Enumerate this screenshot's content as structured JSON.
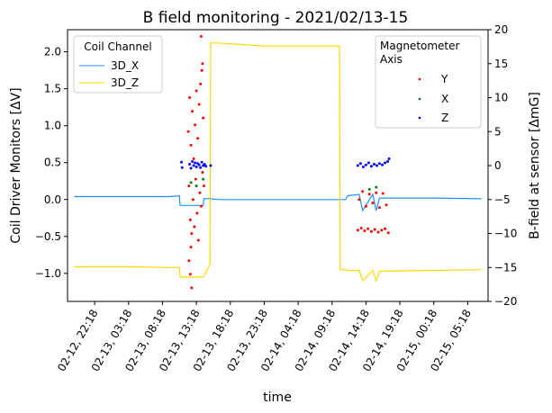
{
  "chart_data": {
    "type": "line",
    "title": "B field monitoring - 2021/02/13-15",
    "xlabel": "time",
    "ylabel_left": "Coil Driver Monitors [ΔV]",
    "ylabel_right": "B-field at sensor [ΔmG]",
    "ylim_left": [
      -1.38,
      2.3
    ],
    "ylim_right": [
      -20,
      20
    ],
    "xlim_hours": [
      -4,
      58
    ],
    "grid": false,
    "left_ticks": [
      "−1.0",
      "−0.5",
      "0.0",
      "0.5",
      "1.0",
      "1.5",
      "2.0"
    ],
    "left_tick_values": [
      -1.0,
      -0.5,
      0.0,
      0.5,
      1.0,
      1.5,
      2.0
    ],
    "right_ticks": [
      "−20",
      "−15",
      "−10",
      "−5",
      "0",
      "5",
      "10",
      "15",
      "20"
    ],
    "right_tick_values": [
      -20,
      -15,
      -10,
      -5,
      0,
      5,
      10,
      15,
      20
    ],
    "x_ticks": [
      "02-12, 22:18",
      "02-13, 03:18",
      "02-13, 08:18",
      "02-13, 13:18",
      "02-13, 18:18",
      "02-13, 23:18",
      "02-14, 04:18",
      "02-14, 09:18",
      "02-14, 14:18",
      "02-14, 19:18",
      "02-15, 00:18",
      "02-15, 05:18"
    ],
    "x_tick_values": [
      0,
      5,
      10,
      15,
      20,
      25,
      30,
      35,
      40,
      45,
      50,
      55
    ],
    "legend_left": {
      "title": "Coil Channel",
      "placement": "top-left",
      "entries": [
        {
          "name": "3D_X",
          "color": "#1e90ff"
        },
        {
          "name": "3D_Z",
          "color": "#ffd700"
        }
      ]
    },
    "legend_right": {
      "title_line1": "Magnetometer",
      "title_line2": "Axis",
      "placement": "top-right",
      "entries": [
        {
          "name": "Y",
          "color": "#ff0000"
        },
        {
          "name": "X",
          "color": "#008000"
        },
        {
          "name": "Z",
          "color": "#0000ff"
        }
      ]
    },
    "series": [
      {
        "name": "3D_X",
        "axis": "left",
        "kind": "line",
        "color": "#1e90ff",
        "x": [
          -3,
          5,
          11,
          12.5,
          12.6,
          13.5,
          14.5,
          16,
          16.1,
          17,
          18.5,
          25,
          35,
          37,
          37.3,
          39,
          39.5,
          41,
          41.5,
          42,
          50,
          57
        ],
        "y": [
          0.04,
          0.04,
          0.04,
          0.05,
          -0.08,
          -0.08,
          -0.08,
          -0.08,
          0.01,
          0.01,
          0.0,
          0.0,
          0.0,
          0.0,
          0.05,
          0.07,
          -0.15,
          0.07,
          -0.15,
          0.02,
          0.02,
          0.01
        ]
      },
      {
        "name": "3D_Z",
        "axis": "left",
        "kind": "line",
        "color": "#ffd700",
        "x": [
          -3,
          5,
          11,
          12.5,
          12.6,
          13.5,
          14.5,
          16,
          17,
          17.1,
          18,
          25,
          35,
          36.1,
          36.2,
          37,
          37.3,
          39,
          39.5,
          41,
          41.5,
          42,
          50,
          57
        ],
        "y": [
          -0.91,
          -0.91,
          -0.92,
          -0.92,
          -1.05,
          -1.05,
          -1.05,
          -1.05,
          -0.88,
          2.12,
          2.12,
          2.08,
          2.08,
          2.08,
          -0.95,
          -0.95,
          -0.96,
          -0.96,
          -1.1,
          -0.96,
          -1.1,
          -0.97,
          -0.96,
          -0.95
        ]
      },
      {
        "name": "Y",
        "axis": "right",
        "kind": "scatter",
        "color": "#ff0000",
        "x": [
          13.8,
          13.9,
          14.0,
          14.1,
          14.2,
          14.3,
          14.4,
          14.5,
          14.6,
          14.7,
          14.8,
          14.9,
          15.0,
          15.1,
          15.2,
          15.3,
          15.4,
          15.5,
          15.6,
          15.7,
          15.8,
          15.9,
          16.0,
          16.1,
          14.1,
          14.3,
          15.7,
          15.9,
          13.9,
          14.2,
          38.8,
          39.3,
          39.8,
          40.3,
          40.8,
          41.3,
          41.8,
          42.3,
          42.8,
          43.3,
          39.0,
          40.0,
          41.0,
          42.0,
          43.0,
          39.5,
          40.5,
          41.5,
          42.5
        ],
        "y": [
          5,
          -3,
          10,
          -8,
          3,
          -10,
          8,
          -5,
          1,
          -9,
          6,
          -2,
          11,
          -7,
          4,
          -11,
          9,
          -4,
          12,
          -6,
          14,
          -1,
          7,
          -3,
          -16,
          -18,
          19,
          15,
          -14,
          -12,
          -9.5,
          -9.2,
          -9.6,
          -9.3,
          -9.7,
          -9.4,
          -9.8,
          -9.5,
          -9.3,
          -9.9,
          -5,
          -6,
          -5.5,
          -6.2,
          -5.8,
          -3.8,
          -4.2,
          -4.0,
          -4.1
        ]
      },
      {
        "name": "X",
        "axis": "right",
        "kind": "scatter",
        "color": "#008000",
        "x": [
          14.2,
          15.0,
          16.0,
          40.5,
          41.5
        ],
        "y": [
          -2.5,
          -3.0,
          -2.0,
          -3.5,
          -3.2
        ]
      },
      {
        "name": "Z",
        "axis": "right",
        "kind": "scatter",
        "color": "#0000ff",
        "x": [
          12.8,
          12.9,
          14.0,
          14.2,
          14.4,
          14.6,
          14.8,
          15.0,
          15.2,
          15.4,
          15.6,
          15.8,
          16.0,
          16.2,
          16.4,
          17.1,
          38.8,
          39.2,
          39.6,
          40.0,
          40.4,
          40.8,
          41.2,
          41.6,
          42.0,
          42.4,
          42.8,
          43.2,
          43.4
        ],
        "y": [
          0.5,
          -0.3,
          0.2,
          -0.4,
          0.6,
          0.0,
          0.4,
          -0.2,
          0.3,
          0.1,
          -0.3,
          0.5,
          0.0,
          0.2,
          -0.1,
          0.0,
          0.0,
          0.3,
          -0.2,
          0.1,
          0.4,
          -0.1,
          0.2,
          0.0,
          0.3,
          0.1,
          0.4,
          0.6,
          1.0
        ]
      }
    ]
  }
}
